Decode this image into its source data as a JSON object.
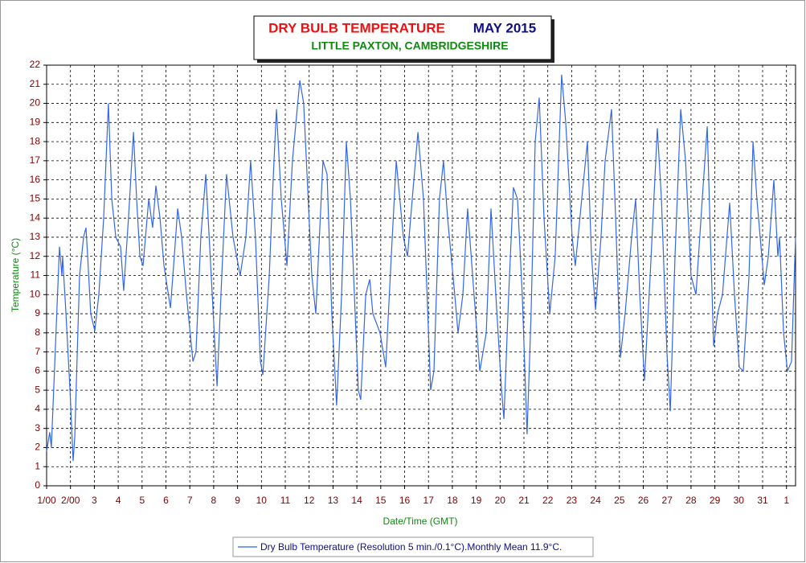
{
  "chart_data": {
    "type": "line",
    "title": "DRY BULB TEMPERATURE",
    "title_period": "MAY 2015",
    "subtitle": "LITTLE PAXTON, CAMBRIDGESHIRE",
    "xlabel": "Date/Time (GMT)",
    "ylabel": "Temperature (°C)",
    "x": [
      1.0,
      1.13,
      1.2,
      1.54,
      1.64,
      1.67,
      1.81,
      1.98,
      2.11,
      2.18,
      2.38,
      2.55,
      2.65,
      2.72,
      2.85,
      3.02,
      3.19,
      3.39,
      3.59,
      3.73,
      3.9,
      4.1,
      4.23,
      4.43,
      4.64,
      4.77,
      4.91,
      5.04,
      5.28,
      5.44,
      5.58,
      5.75,
      5.92,
      6.19,
      6.35,
      6.49,
      6.66,
      6.86,
      7.13,
      7.26,
      7.46,
      7.67,
      7.94,
      8.14,
      8.34,
      8.54,
      8.81,
      9.11,
      9.35,
      9.55,
      9.75,
      9.96,
      10.06,
      10.33,
      10.49,
      10.63,
      10.83,
      11.07,
      11.3,
      11.61,
      11.77,
      12.11,
      12.28,
      12.58,
      12.75,
      12.95,
      13.15,
      13.36,
      13.56,
      13.73,
      14.06,
      14.16,
      14.37,
      14.54,
      14.67,
      14.97,
      15.21,
      15.44,
      15.65,
      15.95,
      16.12,
      16.32,
      16.56,
      16.79,
      17.09,
      17.23,
      17.46,
      17.63,
      17.8,
      18.1,
      18.24,
      18.44,
      18.64,
      18.91,
      19.15,
      19.42,
      19.62,
      19.82,
      20.06,
      20.16,
      20.36,
      20.56,
      20.73,
      20.93,
      21.13,
      21.3,
      21.47,
      21.64,
      21.84,
      22.08,
      22.31,
      22.58,
      22.75,
      23.02,
      23.15,
      23.42,
      23.66,
      23.83,
      24.0,
      24.23,
      24.4,
      24.67,
      24.84,
      25.04,
      25.24,
      25.51,
      25.68,
      25.85,
      26.05,
      26.29,
      26.59,
      26.76,
      26.99,
      27.13,
      27.33,
      27.57,
      27.77,
      28.0,
      28.21,
      28.47,
      28.68,
      28.81,
      28.95,
      29.11,
      29.32,
      29.62,
      29.82,
      30.02,
      30.19,
      30.43,
      30.6,
      30.76,
      31.07,
      31.24,
      31.47,
      31.64,
      31.71,
      31.88,
      32.04,
      32.21,
      32.38
    ],
    "series": [
      {
        "name": "Dry Bulb Temperature (Resolution 5 min./0.1°C).Monthly Mean 11.9°C.",
        "color": "#3366ee",
        "values": [
          1.8,
          2.8,
          2.0,
          12.5,
          11,
          12,
          9,
          5,
          1.3,
          2.5,
          11,
          13,
          13.5,
          12,
          9,
          8.1,
          10,
          14,
          20,
          15,
          13,
          12.5,
          10.2,
          14,
          18.5,
          15,
          12,
          11.5,
          15,
          13.5,
          15.7,
          14,
          11.5,
          9.3,
          12,
          14.5,
          13,
          10,
          6.5,
          7,
          13,
          16.3,
          10,
          5.2,
          11,
          16.3,
          13,
          11,
          13,
          17,
          13,
          6.5,
          5.8,
          11,
          16,
          19.7,
          15,
          11.5,
          17,
          21.2,
          20,
          11,
          9,
          17,
          16.3,
          9,
          4.2,
          10,
          18,
          15,
          5,
          4.5,
          10,
          10.8,
          9,
          8,
          6.2,
          12,
          17,
          13,
          12,
          15,
          18.5,
          15,
          5,
          6,
          15,
          17,
          14,
          10,
          8,
          10,
          14.5,
          10,
          6,
          8,
          14.5,
          10,
          5,
          3.5,
          10,
          15.6,
          15,
          10,
          2.7,
          9,
          18,
          20.3,
          14,
          9,
          12,
          21.5,
          19,
          13,
          11.5,
          15,
          18,
          12,
          9.2,
          13,
          17,
          19.7,
          14,
          6.7,
          9,
          13,
          15,
          10,
          5.5,
          11,
          18.7,
          15,
          7,
          3.9,
          12,
          19.7,
          17,
          11,
          10,
          15,
          18.8,
          13,
          7.3,
          9,
          10,
          14.8,
          10,
          6.2,
          6,
          11,
          18,
          15,
          10.5,
          12,
          16,
          12,
          13,
          8,
          6,
          6.5,
          13
        ]
      }
    ],
    "xlim": [
      1,
      32.38
    ],
    "xticks": [
      {
        "value": 1,
        "label": "1/00"
      },
      {
        "value": 2,
        "label": "2/00"
      },
      3,
      4,
      5,
      6,
      7,
      8,
      9,
      10,
      11,
      12,
      13,
      14,
      15,
      16,
      17,
      18,
      19,
      20,
      21,
      22,
      23,
      24,
      25,
      26,
      27,
      28,
      29,
      30,
      31,
      {
        "value": 32,
        "label": "1"
      }
    ],
    "ylim": [
      0,
      22
    ],
    "yticks": [
      0,
      1,
      2,
      3,
      4,
      5,
      6,
      7,
      8,
      9,
      10,
      11,
      12,
      13,
      14,
      15,
      16,
      17,
      18,
      19,
      20,
      21,
      22
    ],
    "grid": true
  }
}
